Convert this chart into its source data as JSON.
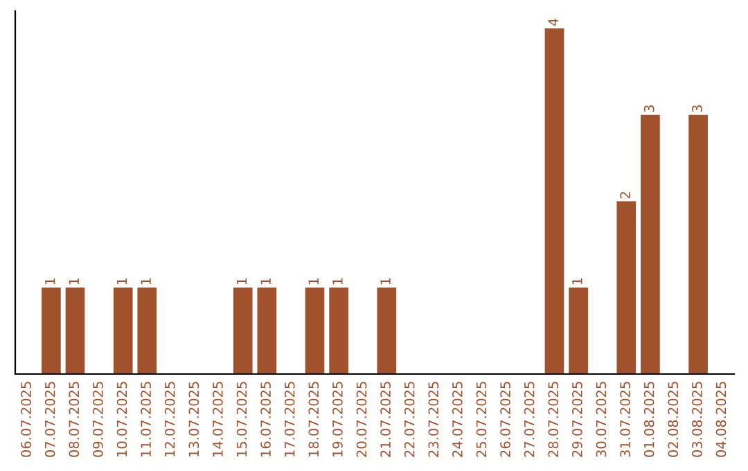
{
  "chart_data": {
    "type": "bar",
    "categories": [
      "06.07.2025",
      "07.07.2025",
      "08.07.2025",
      "09.07.2025",
      "10.07.2025",
      "11.07.2025",
      "12.07.2025",
      "13.07.2025",
      "14.07.2025",
      "15.07.2025",
      "16.07.2025",
      "17.07.2025",
      "18.07.2025",
      "19.07.2025",
      "20.07.2025",
      "21.07.2025",
      "22.07.2025",
      "23.07.2025",
      "24.07.2025",
      "25.07.2025",
      "26.07.2025",
      "27.07.2025",
      "28.07.2025",
      "29.07.2025",
      "30.07.2025",
      "31.07.2025",
      "01.08.2025",
      "02.08.2025",
      "03.08.2025",
      "04.08.2025"
    ],
    "values": [
      0,
      1,
      1,
      0,
      1,
      1,
      0,
      0,
      0,
      1,
      1,
      0,
      1,
      1,
      0,
      1,
      0,
      0,
      0,
      0,
      0,
      0,
      4,
      1,
      0,
      2,
      3,
      0,
      3,
      0
    ],
    "value_labels": [
      null,
      "1",
      "1",
      null,
      "1",
      "1",
      null,
      null,
      null,
      "1",
      "1",
      null,
      "1",
      "1",
      null,
      "1",
      null,
      null,
      null,
      null,
      null,
      null,
      "4",
      "1",
      null,
      "2",
      "3",
      null,
      "3",
      null
    ],
    "color": "#a0522d",
    "tick_labels": "x",
    "grid": false,
    "legend": false
  }
}
